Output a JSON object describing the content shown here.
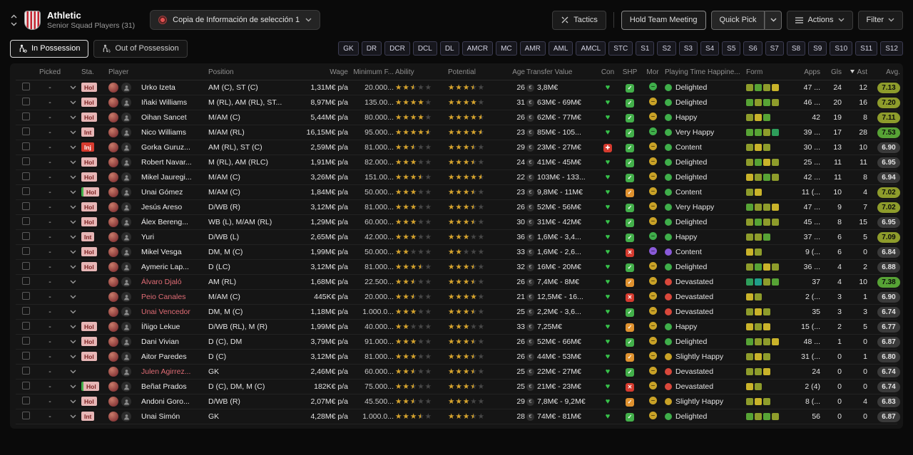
{
  "header": {
    "club_name": "Athletic",
    "squad_label": "Senior Squad Players (31)",
    "view_selector": "Copia de Información de selección 1",
    "tactics_label": "Tactics",
    "hold_meeting_label": "Hold Team Meeting",
    "quick_pick_label": "Quick Pick",
    "actions_label": "Actions",
    "filter_label": "Filter"
  },
  "toolbar": {
    "in_possession": "In Possession",
    "out_of_possession": "Out of Possession",
    "position_filters": [
      "GK",
      "DR",
      "DCR",
      "DCL",
      "DL",
      "AMCR",
      "MC",
      "AMR",
      "AML",
      "AMCL",
      "STC",
      "S1",
      "S2",
      "S3",
      "S4",
      "S5",
      "S6",
      "S7",
      "S8",
      "S9",
      "S10",
      "S11",
      "S12"
    ]
  },
  "icons": {
    "heart": "♥",
    "injury_cross": "✚",
    "check": "✓",
    "cross": "✕",
    "euro": "€"
  },
  "colors": {
    "accent_green": "#57a335",
    "accent_olive": "#8e9c2b",
    "status_injury": "#d63b2f",
    "status_badge_bg": "#e7b6b6",
    "listed_name": "#e06c75",
    "star_gold": "#d7a42c"
  },
  "table": {
    "columns": [
      "Picked",
      "Sta.",
      "Player",
      "Position",
      "Wage",
      "Minimum F...",
      "Ability",
      "Potential",
      "Age",
      "Transfer Value",
      "Con",
      "SHP",
      "Mor",
      "Playing Time Happine...",
      "Form",
      "Apps",
      "Gls",
      "Ast",
      "Avg."
    ],
    "sort_column": "Ast",
    "sort_direction": "desc",
    "rows": [
      {
        "picked": "-",
        "status": "Hol",
        "status_edge": false,
        "name": "Urko Izeta",
        "listed": false,
        "position": "AM (C), ST (C)",
        "wage": "1,31M€ p/a",
        "min_fee": "20.000...",
        "ability": 2.5,
        "potential": 3.5,
        "age": 26,
        "transfer_value": "3,8M€",
        "condition": "fit",
        "sharpness": "good",
        "morale": "green",
        "happiness": "Delighted",
        "happiness_tone": "green",
        "form": [
          "#8e9c2b",
          "#57a335",
          "#8e9c2b",
          "#c9b32a"
        ],
        "apps": "47 ...",
        "gls": 24,
        "ast": 12,
        "avg": "7.13",
        "avg_tone": "olive"
      },
      {
        "picked": "-",
        "status": "Hol",
        "status_edge": false,
        "name": "Iñaki Williams",
        "listed": false,
        "position": "M (RL), AM (RL), ST...",
        "wage": "8,97M€ p/a",
        "min_fee": "135.00...",
        "ability": 4,
        "potential": 4,
        "age": 31,
        "transfer_value": "63M€ - 69M€",
        "condition": "fit",
        "sharpness": "good",
        "morale": "yellow",
        "happiness": "Delighted",
        "happiness_tone": "green",
        "form": [
          "#57a335",
          "#8e9c2b",
          "#57a335",
          "#8e9c2b"
        ],
        "apps": "46 ...",
        "gls": 20,
        "ast": 16,
        "avg": "7.20",
        "avg_tone": "olive"
      },
      {
        "picked": "-",
        "status": "Hol",
        "status_edge": false,
        "name": "Oihan Sancet",
        "listed": false,
        "position": "M/AM (C)",
        "wage": "5,44M€ p/a",
        "min_fee": "80.000...",
        "ability": 4,
        "potential": 4.5,
        "age": 26,
        "transfer_value": "62M€ - 77M€",
        "condition": "fit",
        "sharpness": "good",
        "morale": "yellow",
        "happiness": "Happy",
        "happiness_tone": "green",
        "form": [
          "#8e9c2b",
          "#c9b32a",
          "#57a335"
        ],
        "apps": "42",
        "gls": 19,
        "ast": 8,
        "avg": "7.11",
        "avg_tone": "olive"
      },
      {
        "picked": "-",
        "status": "Int",
        "status_edge": false,
        "name": "Nico Williams",
        "listed": false,
        "position": "M/AM (RL)",
        "wage": "16,15M€ p/a",
        "min_fee": "95.000...",
        "ability": 4.5,
        "potential": 4.5,
        "age": 23,
        "transfer_value": "85M€ - 105...",
        "condition": "fit",
        "sharpness": "good",
        "morale": "green",
        "happiness": "Very Happy",
        "happiness_tone": "green",
        "form": [
          "#57a335",
          "#57a335",
          "#8e9c2b",
          "#2e9e5b"
        ],
        "apps": "39 ...",
        "gls": 17,
        "ast": 28,
        "avg": "7.53",
        "avg_tone": "green"
      },
      {
        "picked": "-",
        "status": "Inj",
        "status_edge": false,
        "name": "Gorka Guruz...",
        "listed": false,
        "position": "AM (RL), ST (C)",
        "wage": "2,59M€ p/a",
        "min_fee": "81.000...",
        "ability": 2.5,
        "potential": 3.5,
        "age": 29,
        "transfer_value": "23M€ - 27M€",
        "condition": "injured",
        "sharpness": "good",
        "morale": "yellow",
        "happiness": "Content",
        "happiness_tone": "green",
        "form": [
          "#8e9c2b",
          "#c9b32a",
          "#8e9c2b"
        ],
        "apps": "30 ...",
        "gls": 13,
        "ast": 10,
        "avg": "6.90",
        "avg_tone": "dark"
      },
      {
        "picked": "-",
        "status": "Hol",
        "status_edge": false,
        "name": "Robert Navar...",
        "listed": false,
        "position": "M (RL), AM (RLC)",
        "wage": "1,91M€ p/a",
        "min_fee": "82.000...",
        "ability": 3,
        "potential": 3.5,
        "age": 24,
        "transfer_value": "41M€ - 45M€",
        "condition": "fit",
        "sharpness": "good",
        "morale": "yellow",
        "happiness": "Delighted",
        "happiness_tone": "green",
        "form": [
          "#8e9c2b",
          "#57a335",
          "#c9b32a",
          "#8e9c2b"
        ],
        "apps": "25 ...",
        "gls": 11,
        "ast": 11,
        "avg": "6.95",
        "avg_tone": "dark"
      },
      {
        "picked": "-",
        "status": "Hol",
        "status_edge": false,
        "name": "Mikel Jauregi...",
        "listed": false,
        "position": "M/AM (C)",
        "wage": "3,26M€ p/a",
        "min_fee": "151.00...",
        "ability": 3.5,
        "potential": 4.5,
        "age": 22,
        "transfer_value": "103M€ - 133...",
        "condition": "fit",
        "sharpness": "good",
        "morale": "yellow",
        "happiness": "Delighted",
        "happiness_tone": "green",
        "form": [
          "#c9b32a",
          "#8e9c2b",
          "#57a335",
          "#8e9c2b"
        ],
        "apps": "42 ...",
        "gls": 11,
        "ast": 8,
        "avg": "6.94",
        "avg_tone": "dark"
      },
      {
        "picked": "-",
        "status": "Hol",
        "status_edge": true,
        "name": "Unai Gómez",
        "listed": false,
        "position": "M/AM (C)",
        "wage": "1,84M€ p/a",
        "min_fee": "50.000...",
        "ability": 3,
        "potential": 3.5,
        "age": 23,
        "transfer_value": "9,8M€ - 11M€",
        "condition": "fit",
        "sharpness": "ok",
        "morale": "yellow",
        "happiness": "Content",
        "happiness_tone": "green",
        "form": [
          "#8e9c2b",
          "#c9b32a"
        ],
        "apps": "11 (...",
        "gls": 10,
        "ast": 4,
        "avg": "7.02",
        "avg_tone": "olive"
      },
      {
        "picked": "-",
        "status": "Hol",
        "status_edge": false,
        "name": "Jesús Areso",
        "listed": false,
        "position": "D/WB (R)",
        "wage": "3,12M€ p/a",
        "min_fee": "81.000...",
        "ability": 3,
        "potential": 3.5,
        "age": 26,
        "transfer_value": "52M€ - 56M€",
        "condition": "fit",
        "sharpness": "good",
        "morale": "yellow",
        "happiness": "Very Happy",
        "happiness_tone": "green",
        "form": [
          "#57a335",
          "#8e9c2b",
          "#8e9c2b",
          "#c9b32a"
        ],
        "apps": "47 ...",
        "gls": 9,
        "ast": 7,
        "avg": "7.02",
        "avg_tone": "olive"
      },
      {
        "picked": "-",
        "status": "Hol",
        "status_edge": false,
        "name": "Álex Bereng...",
        "listed": false,
        "position": "WB (L), M/AM (RL)",
        "wage": "1,29M€ p/a",
        "min_fee": "60.000...",
        "ability": 3,
        "potential": 3.5,
        "age": 30,
        "transfer_value": "31M€ - 42M€",
        "condition": "fit",
        "sharpness": "good",
        "morale": "yellow",
        "happiness": "Delighted",
        "happiness_tone": "green",
        "form": [
          "#8e9c2b",
          "#57a335",
          "#8e9c2b",
          "#8e9c2b"
        ],
        "apps": "45 ...",
        "gls": 8,
        "ast": 15,
        "avg": "6.95",
        "avg_tone": "dark"
      },
      {
        "picked": "-",
        "status": "Int",
        "status_edge": false,
        "name": "Yuri",
        "listed": false,
        "position": "D/WB (L)",
        "wage": "2,65M€ p/a",
        "min_fee": "42.000...",
        "ability": 3,
        "potential": 3,
        "age": 36,
        "transfer_value": "1,6M€ - 3,4...",
        "condition": "fit",
        "sharpness": "good",
        "morale": "green",
        "happiness": "Happy",
        "happiness_tone": "green",
        "form": [
          "#8e9c2b",
          "#8e9c2b",
          "#57a335"
        ],
        "apps": "37 ...",
        "gls": 6,
        "ast": 5,
        "avg": "7.09",
        "avg_tone": "olive"
      },
      {
        "picked": "-",
        "status": "Hol",
        "status_edge": false,
        "name": "Mikel Vesga",
        "listed": false,
        "position": "DM, M (C)",
        "wage": "1,99M€ p/a",
        "min_fee": "50.000...",
        "ability": 2,
        "potential": 2,
        "age": 33,
        "transfer_value": "1,6M€ - 2,6...",
        "condition": "fit",
        "sharpness": "poor",
        "morale": "purple",
        "happiness": "Content",
        "happiness_tone": "purple",
        "form": [
          "#c9b32a",
          "#8e9c2b"
        ],
        "apps": "9 (...",
        "gls": 6,
        "ast": 0,
        "avg": "6.84",
        "avg_tone": "dark"
      },
      {
        "picked": "-",
        "status": "Hol",
        "status_edge": false,
        "name": "Aymeric Lap...",
        "listed": false,
        "position": "D (LC)",
        "wage": "3,12M€ p/a",
        "min_fee": "81.000...",
        "ability": 3.5,
        "potential": 3.5,
        "age": 32,
        "transfer_value": "16M€ - 20M€",
        "condition": "fit",
        "sharpness": "good",
        "morale": "yellow",
        "happiness": "Delighted",
        "happiness_tone": "green",
        "form": [
          "#8e9c2b",
          "#57a335",
          "#c9b32a",
          "#8e9c2b"
        ],
        "apps": "36 ...",
        "gls": 4,
        "ast": 2,
        "avg": "6.88",
        "avg_tone": "dark"
      },
      {
        "picked": "-",
        "status": "",
        "status_edge": false,
        "name": "Álvaro Djaló",
        "listed": true,
        "position": "AM (RL)",
        "wage": "1,68M€ p/a",
        "min_fee": "22.500...",
        "ability": 2.5,
        "potential": 3.5,
        "age": 26,
        "transfer_value": "7,4M€ - 8M€",
        "condition": "fit",
        "sharpness": "ok",
        "morale": "yellow",
        "happiness": "Devastated",
        "happiness_tone": "red",
        "form": [
          "#2e9e5b",
          "#1f9e8a",
          "#8e9c2b",
          "#57a335"
        ],
        "apps": "37",
        "gls": 4,
        "ast": 10,
        "avg": "7.38",
        "avg_tone": "green"
      },
      {
        "picked": "-",
        "status": "",
        "status_edge": false,
        "name": "Peio Canales",
        "listed": true,
        "position": "M/AM (C)",
        "wage": "445K€ p/a",
        "min_fee": "20.000...",
        "ability": 2.5,
        "potential": 4,
        "age": 21,
        "transfer_value": "12,5M€ - 16...",
        "condition": "fit",
        "sharpness": "poor",
        "morale": "yellow",
        "happiness": "Devastated",
        "happiness_tone": "red",
        "form": [
          "#c9b32a",
          "#8e9c2b"
        ],
        "apps": "2 (...",
        "gls": 3,
        "ast": 1,
        "avg": "6.90",
        "avg_tone": "dark"
      },
      {
        "picked": "-",
        "status": "",
        "status_edge": false,
        "name": "Unai Vencedor",
        "listed": true,
        "position": "DM, M (C)",
        "wage": "1,18M€ p/a",
        "min_fee": "1.000.0...",
        "ability": 3,
        "potential": 3.5,
        "age": 25,
        "transfer_value": "2,2M€ - 3,6...",
        "condition": "fit",
        "sharpness": "good",
        "morale": "yellow",
        "happiness": "Devastated",
        "happiness_tone": "red",
        "form": [
          "#8e9c2b",
          "#c9b32a",
          "#8e9c2b"
        ],
        "apps": "35",
        "gls": 3,
        "ast": 3,
        "avg": "6.74",
        "avg_tone": "dark"
      },
      {
        "picked": "-",
        "status": "Hol",
        "status_edge": false,
        "name": "Íñigo Lekue",
        "listed": false,
        "position": "D/WB (RL), M (R)",
        "wage": "1,99M€ p/a",
        "min_fee": "40.000...",
        "ability": 2,
        "potential": 3,
        "age": 33,
        "transfer_value": "7,25M€",
        "condition": "fit",
        "sharpness": "ok",
        "morale": "yellow",
        "happiness": "Happy",
        "happiness_tone": "green",
        "form": [
          "#c9b32a",
          "#8e9c2b",
          "#c9b32a"
        ],
        "apps": "15 (...",
        "gls": 2,
        "ast": 5,
        "avg": "6.77",
        "avg_tone": "dark"
      },
      {
        "picked": "-",
        "status": "Hol",
        "status_edge": false,
        "name": "Dani Vivian",
        "listed": false,
        "position": "D (C), DM",
        "wage": "3,79M€ p/a",
        "min_fee": "91.000...",
        "ability": 3,
        "potential": 3.5,
        "age": 26,
        "transfer_value": "52M€ - 66M€",
        "condition": "fit",
        "sharpness": "good",
        "morale": "yellow",
        "happiness": "Delighted",
        "happiness_tone": "green",
        "form": [
          "#57a335",
          "#8e9c2b",
          "#8e9c2b",
          "#c9b32a"
        ],
        "apps": "48 ...",
        "gls": 1,
        "ast": 0,
        "avg": "6.87",
        "avg_tone": "dark"
      },
      {
        "picked": "-",
        "status": "Hol",
        "status_edge": false,
        "name": "Aitor Paredes",
        "listed": false,
        "position": "D (C)",
        "wage": "3,12M€ p/a",
        "min_fee": "81.000...",
        "ability": 3,
        "potential": 3.5,
        "age": 26,
        "transfer_value": "44M€ - 53M€",
        "condition": "fit",
        "sharpness": "ok",
        "morale": "yellow",
        "happiness": "Slightly Happy",
        "happiness_tone": "yellow",
        "form": [
          "#8e9c2b",
          "#c9b32a",
          "#8e9c2b"
        ],
        "apps": "31 (...",
        "gls": 0,
        "ast": 1,
        "avg": "6.80",
        "avg_tone": "dark"
      },
      {
        "picked": "-",
        "status": "",
        "status_edge": false,
        "name": "Julen Agirrez...",
        "listed": true,
        "position": "GK",
        "wage": "2,46M€ p/a",
        "min_fee": "60.000...",
        "ability": 2.5,
        "potential": 3.5,
        "age": 25,
        "transfer_value": "22M€ - 27M€",
        "condition": "fit",
        "sharpness": "good",
        "morale": "yellow",
        "happiness": "Devastated",
        "happiness_tone": "red",
        "form": [
          "#8e9c2b",
          "#8e9c2b",
          "#c9b32a"
        ],
        "apps": "24",
        "gls": 0,
        "ast": 0,
        "avg": "6.74",
        "avg_tone": "dark"
      },
      {
        "picked": "-",
        "status": "Hol",
        "status_edge": true,
        "name": "Beñat Prados",
        "listed": false,
        "position": "D (C), DM, M (C)",
        "wage": "182K€ p/a",
        "min_fee": "75.000...",
        "ability": 2.5,
        "potential": 3.5,
        "age": 25,
        "transfer_value": "21M€ - 23M€",
        "condition": "fit",
        "sharpness": "poor",
        "morale": "yellow",
        "happiness": "Devastated",
        "happiness_tone": "red",
        "form": [
          "#c9b32a",
          "#8e9c2b"
        ],
        "apps": "2 (4)",
        "gls": 0,
        "ast": 0,
        "avg": "6.74",
        "avg_tone": "dark"
      },
      {
        "picked": "-",
        "status": "Hol",
        "status_edge": false,
        "name": "Andoni Goro...",
        "listed": false,
        "position": "D/WB (R)",
        "wage": "2,07M€ p/a",
        "min_fee": "45.500...",
        "ability": 2.5,
        "potential": 3,
        "age": 29,
        "transfer_value": "7,8M€ - 9,2M€",
        "condition": "fit",
        "sharpness": "ok",
        "morale": "yellow",
        "happiness": "Slightly Happy",
        "happiness_tone": "yellow",
        "form": [
          "#8e9c2b",
          "#c9b32a",
          "#8e9c2b"
        ],
        "apps": "8 (...",
        "gls": 0,
        "ast": 4,
        "avg": "6.83",
        "avg_tone": "dark"
      },
      {
        "picked": "-",
        "status": "Int",
        "status_edge": false,
        "name": "Unai Simón",
        "listed": false,
        "position": "GK",
        "wage": "4,28M€ p/a",
        "min_fee": "1.000.0...",
        "ability": 3.5,
        "potential": 3.5,
        "age": 28,
        "transfer_value": "74M€ - 81M€",
        "condition": "fit",
        "sharpness": "good",
        "morale": "yellow",
        "happiness": "Delighted",
        "happiness_tone": "green",
        "form": [
          "#57a335",
          "#8e9c2b",
          "#57a335",
          "#8e9c2b"
        ],
        "apps": "56",
        "gls": 0,
        "ast": 0,
        "avg": "6.87",
        "avg_tone": "dark"
      }
    ]
  }
}
